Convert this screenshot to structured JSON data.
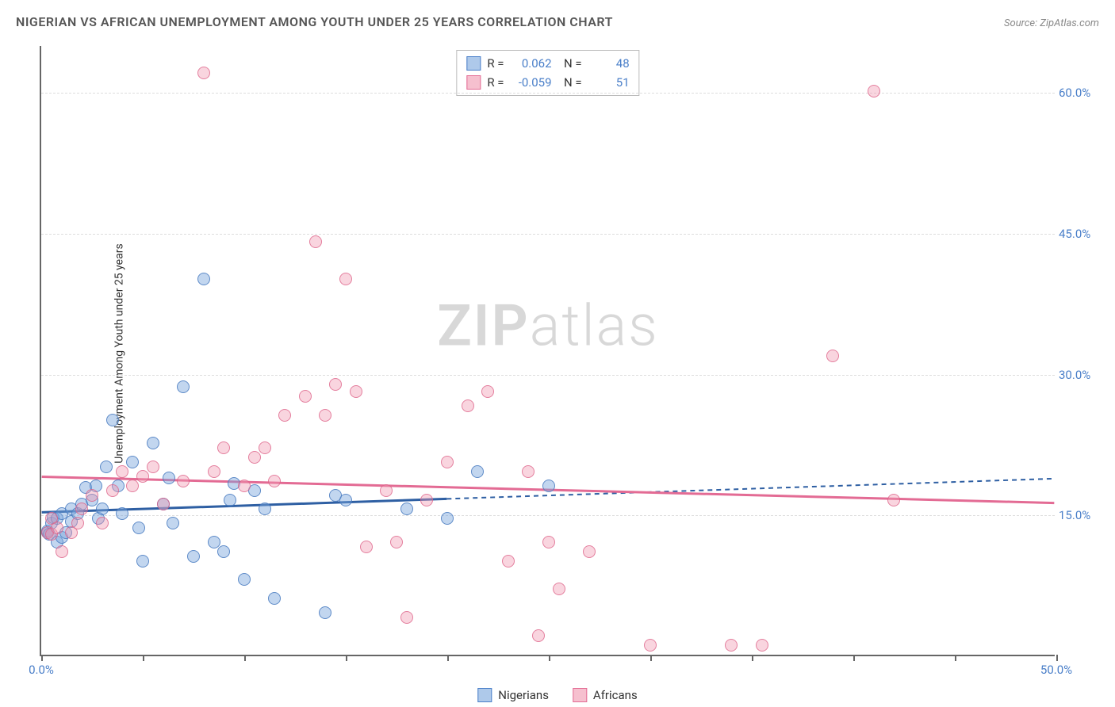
{
  "title": "NIGERIAN VS AFRICAN UNEMPLOYMENT AMONG YOUTH UNDER 25 YEARS CORRELATION CHART",
  "source": "Source: ZipAtlas.com",
  "y_axis_label": "Unemployment Among Youth under 25 years",
  "watermark": {
    "bold": "ZIP",
    "rest": "atlas"
  },
  "chart": {
    "type": "scatter",
    "xlim": [
      0,
      50
    ],
    "ylim": [
      0,
      65
    ],
    "x_ticks": [
      0,
      5,
      10,
      15,
      20,
      25,
      30,
      35,
      40,
      45,
      50
    ],
    "x_tick_labels": {
      "0": "0.0%",
      "50": "50.0%"
    },
    "y_ticks": [
      15,
      30,
      45,
      60
    ],
    "y_tick_labels": {
      "15": "15.0%",
      "30": "30.0%",
      "45": "45.0%",
      "60": "60.0%"
    },
    "grid_color": "#dddddd",
    "background_color": "#ffffff",
    "marker_radius": 8,
    "series": [
      {
        "name": "Nigerians",
        "fill": "rgba(120,165,220,0.45)",
        "stroke": "#4a7fc9",
        "R": "0.062",
        "N": "48",
        "trend": {
          "y_at_x0": 15.2,
          "y_at_x50": 18.8,
          "solid_until_x": 20,
          "color": "#2e5fa3",
          "width": 3
        },
        "points": [
          [
            0.3,
            13.0
          ],
          [
            0.3,
            13.2
          ],
          [
            0.4,
            12.8
          ],
          [
            0.5,
            14.0
          ],
          [
            0.6,
            14.6
          ],
          [
            0.8,
            12.0
          ],
          [
            0.8,
            14.5
          ],
          [
            1.0,
            15.0
          ],
          [
            1.0,
            12.5
          ],
          [
            1.2,
            13.0
          ],
          [
            1.5,
            15.5
          ],
          [
            1.5,
            14.2
          ],
          [
            1.8,
            15.0
          ],
          [
            2.0,
            16.0
          ],
          [
            2.2,
            17.8
          ],
          [
            2.5,
            16.5
          ],
          [
            2.7,
            18.0
          ],
          [
            2.8,
            14.5
          ],
          [
            3.0,
            15.5
          ],
          [
            3.2,
            20.0
          ],
          [
            3.5,
            25.0
          ],
          [
            3.8,
            18.0
          ],
          [
            4.0,
            15.0
          ],
          [
            4.5,
            20.5
          ],
          [
            4.8,
            13.5
          ],
          [
            5.0,
            10.0
          ],
          [
            5.5,
            22.5
          ],
          [
            6.0,
            16.0
          ],
          [
            6.3,
            18.8
          ],
          [
            6.5,
            14.0
          ],
          [
            7.0,
            28.5
          ],
          [
            7.5,
            10.5
          ],
          [
            8.0,
            40.0
          ],
          [
            8.5,
            12.0
          ],
          [
            9.0,
            11.0
          ],
          [
            9.3,
            16.5
          ],
          [
            9.5,
            18.2
          ],
          [
            10.0,
            8.0
          ],
          [
            10.5,
            17.5
          ],
          [
            11.0,
            15.5
          ],
          [
            11.5,
            6.0
          ],
          [
            14.0,
            4.5
          ],
          [
            14.5,
            17.0
          ],
          [
            15.0,
            16.5
          ],
          [
            18.0,
            15.5
          ],
          [
            20.0,
            14.5
          ],
          [
            21.5,
            19.5
          ],
          [
            25.0,
            18.0
          ]
        ]
      },
      {
        "name": "Africans",
        "fill": "rgba(240,150,175,0.40)",
        "stroke": "#e36b94",
        "R": "-0.059",
        "N": "51",
        "trend": {
          "y_at_x0": 19.0,
          "y_at_x50": 16.2,
          "solid_until_x": 50,
          "color": "#e36b94",
          "width": 3
        },
        "points": [
          [
            0.3,
            13.0
          ],
          [
            0.5,
            12.8
          ],
          [
            0.5,
            14.5
          ],
          [
            0.8,
            13.5
          ],
          [
            1.0,
            11.0
          ],
          [
            1.5,
            13.0
          ],
          [
            1.8,
            14.0
          ],
          [
            2.0,
            15.5
          ],
          [
            2.5,
            17.0
          ],
          [
            3.0,
            14.0
          ],
          [
            3.5,
            17.5
          ],
          [
            4.0,
            19.5
          ],
          [
            4.5,
            18.0
          ],
          [
            5.0,
            19.0
          ],
          [
            5.5,
            20.0
          ],
          [
            6.0,
            16.0
          ],
          [
            7.0,
            18.5
          ],
          [
            8.0,
            62.0
          ],
          [
            8.5,
            19.5
          ],
          [
            9.0,
            22.0
          ],
          [
            10.0,
            18.0
          ],
          [
            10.5,
            21.0
          ],
          [
            11.0,
            22.0
          ],
          [
            11.5,
            18.5
          ],
          [
            12.0,
            25.5
          ],
          [
            13.0,
            27.5
          ],
          [
            13.5,
            44.0
          ],
          [
            14.0,
            25.5
          ],
          [
            14.5,
            28.8
          ],
          [
            15.0,
            40.0
          ],
          [
            15.5,
            28.0
          ],
          [
            16.0,
            11.5
          ],
          [
            17.0,
            17.5
          ],
          [
            17.5,
            12.0
          ],
          [
            18.0,
            4.0
          ],
          [
            19.0,
            16.5
          ],
          [
            20.0,
            20.5
          ],
          [
            21.0,
            26.5
          ],
          [
            22.0,
            28.0
          ],
          [
            23.0,
            10.0
          ],
          [
            24.0,
            19.5
          ],
          [
            24.5,
            2.0
          ],
          [
            25.0,
            12.0
          ],
          [
            25.5,
            7.0
          ],
          [
            27.0,
            11.0
          ],
          [
            30.0,
            1.0
          ],
          [
            34.0,
            1.0
          ],
          [
            35.5,
            1.0
          ],
          [
            39.0,
            31.8
          ],
          [
            41.0,
            60.0
          ],
          [
            42.0,
            16.5
          ]
        ]
      }
    ]
  },
  "bottom_legend": [
    {
      "label": "Nigerians",
      "series": 0
    },
    {
      "label": "Africans",
      "series": 1
    }
  ]
}
